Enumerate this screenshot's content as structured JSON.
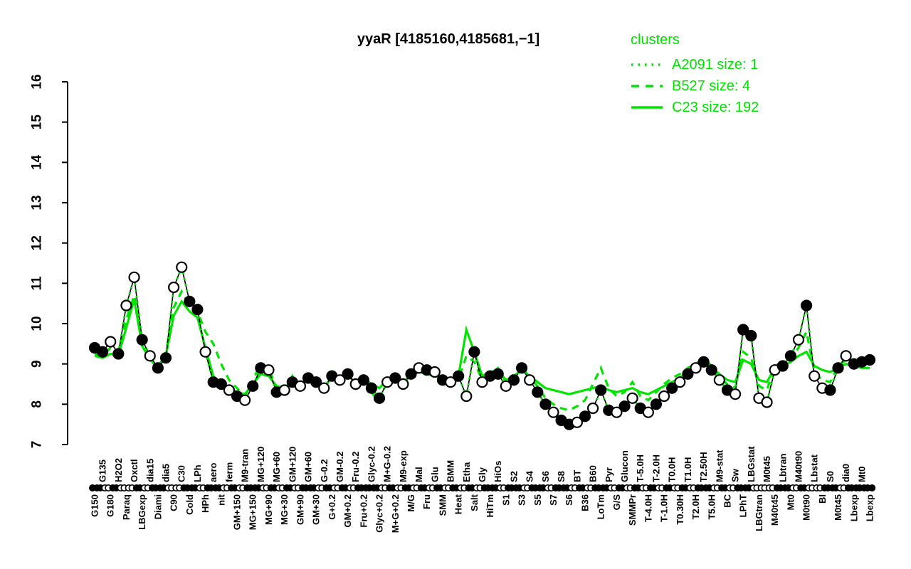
{
  "title": "yyaR [4185160,4185681,−1]",
  "legend": {
    "title": "clusters",
    "entries": [
      {
        "label": "A2091 size: 1",
        "style": "dotted"
      },
      {
        "label": "B527 size: 4",
        "style": "dashed"
      },
      {
        "label": "C23 size: 192",
        "style": "solid"
      }
    ]
  },
  "colors": {
    "cluster": "#00E400",
    "gene": "#000000",
    "background": "#FFFFFF"
  },
  "chart_data": {
    "type": "line",
    "title": "yyaR [4185160,4185681,−1]",
    "xlabel": "",
    "ylabel": "",
    "ylim": [
      7,
      16
    ],
    "yticks": [
      7,
      8,
      9,
      10,
      11,
      12,
      13,
      14,
      15,
      16
    ],
    "grid": false,
    "legend_position": "top-right",
    "categories": [
      "G150",
      "G135",
      "G180",
      "H2O2",
      "Paraq",
      "Oxctl",
      "LBGexp",
      "dia15",
      "Diami",
      "dia5",
      "C90",
      "C30",
      "Cold",
      "LPh",
      "HPh",
      "aero",
      "nit",
      "ferm",
      "GM+150",
      "M9-tran",
      "MG+150",
      "MG+120",
      "MG+90",
      "MG+60",
      "MG+30",
      "GM+120",
      "GM+90",
      "GM+60",
      "GM+30",
      "G-0.2",
      "G+0.2",
      "GM-0.2",
      "GM+0.2",
      "Fru-0.2",
      "Fru+0.2",
      "Glyc-0.2",
      "Glyc+0.2",
      "M+G-0.2",
      "M+G+0.2",
      "M9-exp",
      "M/G",
      "Mal",
      "Fru",
      "Glu",
      "SMM",
      "BMM",
      "Heat",
      "Etha",
      "Salt",
      "Gly",
      "HiTm",
      "HiOs",
      "S1",
      "S2",
      "S3",
      "S4",
      "S5",
      "S6",
      "S7",
      "S8",
      "S6",
      "BT",
      "B36",
      "B60",
      "LoTm",
      "Pyr",
      "G/S",
      "Glucon",
      "SMMPr",
      "T-5.0H",
      "T-4.0H",
      "T-2.0H",
      "T-1.0H",
      "T0.0H",
      "T0.30H",
      "T1.0H",
      "T2.0H",
      "T2.50H",
      "T5.0H",
      "M9-stat",
      "BC",
      "Sw",
      "LPhT",
      "LBGstat",
      "LBGtran",
      "M0t45",
      "M40t45",
      "Lbtran",
      "Mt0",
      "M40t90",
      "M0t90",
      "Lbstat",
      "BI",
      "S0",
      "M0t45",
      "dia0",
      "Lbexp",
      "Mt0",
      "Lbexp"
    ],
    "series": [
      {
        "name": "yyaR gene profile",
        "color": "#000000",
        "style": "solid-thin",
        "marker": "circle",
        "values": [
          9.4,
          9.3,
          9.55,
          9.25,
          10.45,
          11.15,
          9.6,
          9.2,
          8.9,
          9.15,
          10.9,
          11.4,
          10.55,
          10.35,
          9.3,
          8.55,
          8.5,
          8.35,
          8.2,
          8.1,
          8.45,
          8.9,
          8.85,
          8.3,
          8.35,
          8.55,
          8.45,
          8.65,
          8.55,
          8.4,
          8.7,
          8.6,
          8.75,
          8.5,
          8.6,
          8.4,
          8.15,
          8.55,
          8.65,
          8.5,
          8.75,
          8.9,
          8.85,
          8.8,
          8.6,
          8.55,
          8.7,
          8.2,
          9.3,
          8.55,
          8.7,
          8.75,
          8.45,
          8.6,
          8.9,
          8.6,
          8.3,
          8.0,
          7.8,
          7.6,
          7.5,
          7.55,
          7.7,
          7.9,
          8.35,
          7.85,
          7.8,
          7.95,
          8.15,
          7.9,
          7.8,
          8.0,
          8.2,
          8.4,
          8.55,
          8.75,
          8.9,
          9.05,
          8.85,
          8.6,
          8.35,
          8.25,
          9.85,
          9.7,
          8.15,
          8.05,
          8.85,
          8.95,
          9.2,
          9.6,
          10.45,
          8.7,
          8.4,
          8.35,
          8.9,
          9.2,
          9.0,
          9.05,
          9.1
        ],
        "marker_filled": [
          1,
          1,
          0,
          1,
          0,
          0,
          1,
          0,
          1,
          1,
          0,
          0,
          1,
          1,
          0,
          1,
          1,
          0,
          1,
          0,
          1,
          1,
          0,
          1,
          0,
          1,
          0,
          1,
          1,
          0,
          1,
          0,
          1,
          0,
          1,
          1,
          1,
          0,
          1,
          0,
          1,
          0,
          1,
          0,
          1,
          0,
          1,
          0,
          1,
          0,
          1,
          1,
          0,
          1,
          1,
          0,
          1,
          1,
          0,
          1,
          1,
          0,
          1,
          0,
          1,
          1,
          0,
          1,
          0,
          1,
          0,
          1,
          0,
          1,
          0,
          1,
          0,
          1,
          1,
          0,
          1,
          0,
          1,
          1,
          0,
          0,
          0,
          1,
          1,
          0,
          1,
          0,
          0,
          1,
          1,
          0,
          1,
          1,
          1
        ]
      },
      {
        "name": "A2091",
        "color": "#00E400",
        "style": "dotted",
        "values": [
          9.4,
          9.3,
          9.55,
          9.25,
          10.45,
          11.15,
          9.6,
          9.2,
          8.9,
          9.15,
          10.9,
          11.4,
          10.55,
          10.35,
          9.3,
          8.55,
          8.5,
          8.35,
          8.2,
          8.1,
          8.45,
          8.9,
          8.85,
          8.3,
          8.35,
          8.55,
          8.45,
          8.65,
          8.55,
          8.4,
          8.7,
          8.6,
          8.75,
          8.5,
          8.6,
          8.4,
          8.15,
          8.55,
          8.65,
          8.5,
          8.75,
          8.9,
          8.85,
          8.8,
          8.6,
          8.55,
          8.7,
          8.2,
          9.3,
          8.55,
          8.7,
          8.75,
          8.45,
          8.6,
          8.9,
          8.6,
          8.3,
          8.0,
          7.8,
          7.6,
          7.5,
          7.55,
          7.7,
          7.9,
          8.35,
          7.85,
          7.8,
          7.95,
          8.15,
          7.9,
          7.8,
          8.0,
          8.2,
          8.4,
          8.55,
          8.75,
          8.9,
          9.05,
          8.85,
          8.6,
          8.35,
          8.25,
          9.85,
          9.7,
          8.15,
          8.05,
          8.85,
          8.95,
          9.2,
          9.6,
          10.45,
          8.7,
          8.4,
          8.35,
          8.9,
          9.2,
          9.0,
          9.05,
          9.1
        ]
      },
      {
        "name": "B527",
        "color": "#00E400",
        "style": "dashed",
        "values": [
          9.25,
          9.2,
          9.4,
          9.3,
          10.1,
          10.7,
          9.55,
          9.15,
          8.85,
          9.25,
          10.4,
          10.8,
          10.45,
          10.3,
          9.8,
          9.5,
          9.0,
          8.6,
          8.4,
          8.2,
          8.6,
          9.0,
          8.9,
          8.4,
          8.3,
          8.7,
          8.4,
          8.75,
          8.6,
          8.3,
          8.8,
          8.5,
          8.85,
          8.4,
          8.7,
          8.3,
          8.05,
          8.6,
          8.75,
          8.45,
          8.8,
          9.0,
          8.9,
          8.85,
          8.55,
          8.5,
          8.6,
          9.2,
          9.05,
          8.6,
          8.75,
          8.9,
          8.55,
          8.75,
          8.95,
          8.65,
          8.45,
          8.15,
          8.0,
          7.9,
          7.85,
          7.95,
          8.1,
          8.5,
          8.9,
          8.4,
          8.2,
          8.3,
          8.55,
          8.2,
          8.1,
          8.3,
          8.5,
          8.65,
          8.75,
          8.9,
          9.0,
          9.15,
          8.95,
          8.65,
          8.5,
          8.4,
          9.3,
          9.15,
          8.45,
          8.35,
          8.95,
          9.05,
          9.15,
          9.4,
          9.8,
          8.8,
          8.6,
          8.55,
          8.95,
          9.1,
          9.0,
          9.05,
          9.0
        ]
      },
      {
        "name": "C23",
        "color": "#00E400",
        "style": "solid",
        "values": [
          9.2,
          9.15,
          9.25,
          9.2,
          9.9,
          10.6,
          9.45,
          9.1,
          8.95,
          9.2,
          10.2,
          10.55,
          10.3,
          10.15,
          9.4,
          8.7,
          8.45,
          8.4,
          8.3,
          8.25,
          8.5,
          8.75,
          8.7,
          8.45,
          8.4,
          8.6,
          8.5,
          8.6,
          8.5,
          8.45,
          8.65,
          8.55,
          8.7,
          8.55,
          8.65,
          8.5,
          8.4,
          8.6,
          8.7,
          8.55,
          8.7,
          8.8,
          8.75,
          8.7,
          8.65,
          8.6,
          8.7,
          9.85,
          9.3,
          8.7,
          8.8,
          8.85,
          8.6,
          8.7,
          8.85,
          8.7,
          8.55,
          8.4,
          8.35,
          8.3,
          8.25,
          8.3,
          8.35,
          8.4,
          8.45,
          8.35,
          8.3,
          8.35,
          8.4,
          8.3,
          8.25,
          8.35,
          8.45,
          8.55,
          8.65,
          8.8,
          8.9,
          9.0,
          8.9,
          8.75,
          8.6,
          8.55,
          9.1,
          9.0,
          8.6,
          8.55,
          8.9,
          8.95,
          9.05,
          9.2,
          9.3,
          8.95,
          8.85,
          8.8,
          8.9,
          9.0,
          8.95,
          8.9,
          8.9
        ]
      }
    ]
  }
}
